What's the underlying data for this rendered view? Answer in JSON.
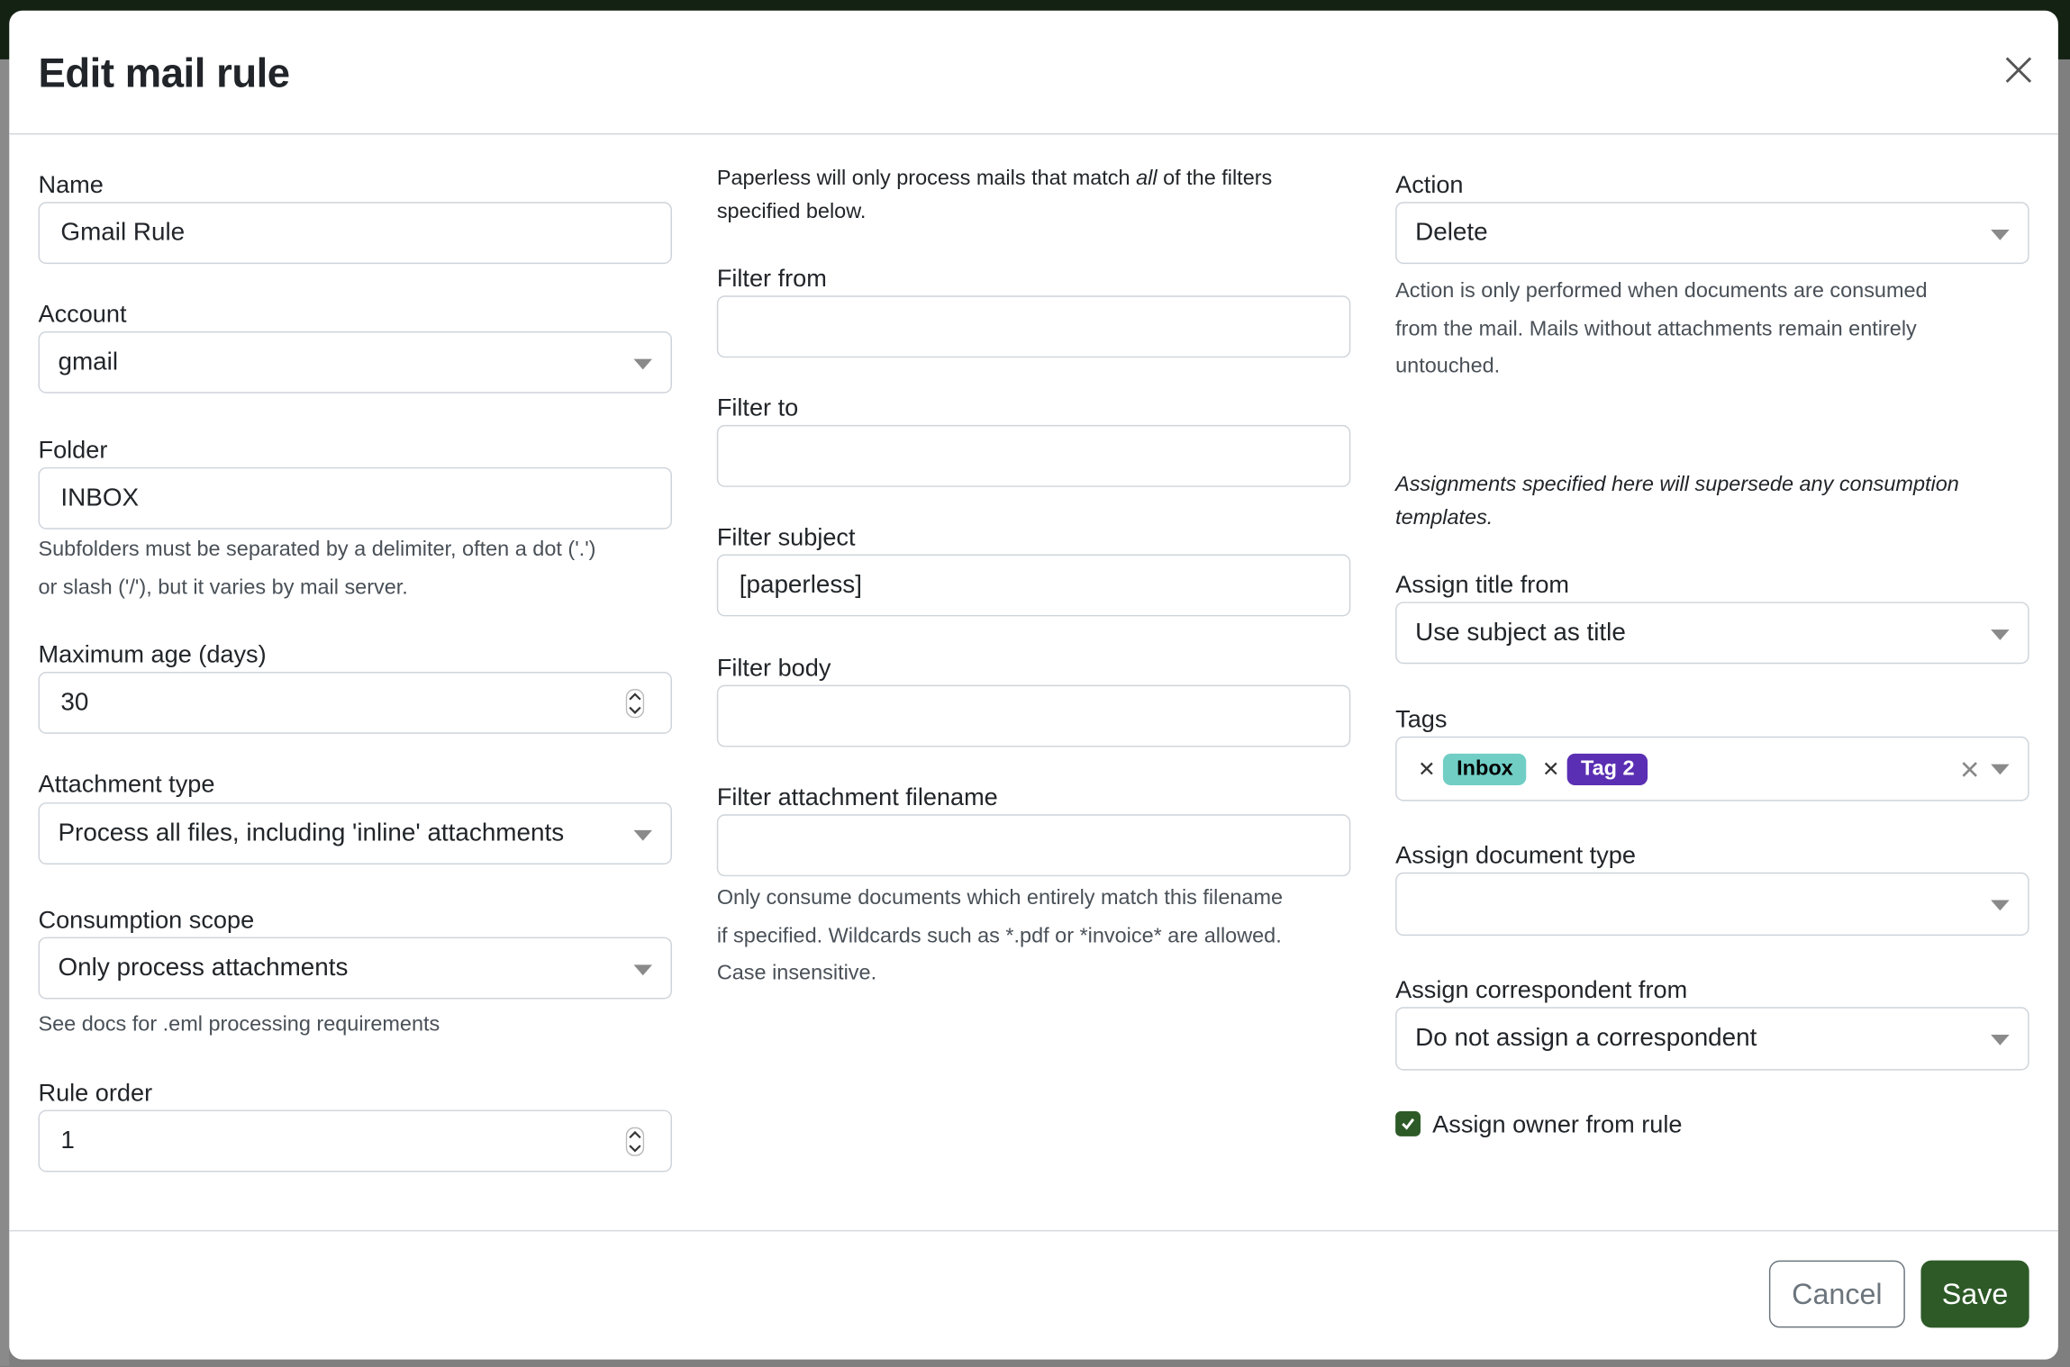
{
  "modal": {
    "title": "Edit mail rule"
  },
  "left": {
    "name": {
      "label": "Name",
      "value": "Gmail Rule"
    },
    "account": {
      "label": "Account",
      "value": "gmail"
    },
    "folder": {
      "label": "Folder",
      "value": "INBOX",
      "help_1": "Subfolders must be separated by a delimiter, often a dot ('.')",
      "help_2": "or slash ('/'), but it varies by mail server."
    },
    "max_age": {
      "label": "Maximum age (days)",
      "value": "30"
    },
    "attachment_type": {
      "label": "Attachment type",
      "value": "Process all files, including 'inline' attachments"
    },
    "consumption_scope": {
      "label": "Consumption scope",
      "value": "Only process attachments",
      "help": "See docs for .eml processing requirements"
    },
    "rule_order": {
      "label": "Rule order",
      "value": "1"
    }
  },
  "middle": {
    "intro_1a": "Paperless will only process mails that match ",
    "intro_1b": "all",
    "intro_1c": " of the filters",
    "intro_2": "specified below.",
    "filter_from": {
      "label": "Filter from",
      "value": ""
    },
    "filter_to": {
      "label": "Filter to",
      "value": ""
    },
    "filter_subject": {
      "label": "Filter subject",
      "value": "[paperless]"
    },
    "filter_body": {
      "label": "Filter body",
      "value": ""
    },
    "filter_attachment": {
      "label": "Filter attachment filename",
      "value": "",
      "help_1": "Only consume documents which entirely match this filename",
      "help_2": "if specified. Wildcards such as *.pdf or *invoice* are allowed.",
      "help_3": "Case insensitive."
    }
  },
  "right": {
    "action": {
      "label": "Action",
      "value": "Delete",
      "help_1": "Action is only performed when documents are consumed",
      "help_2": "from the mail. Mails without attachments remain entirely",
      "help_3": "untouched."
    },
    "assign_note_1": "Assignments specified here will supersede any consumption",
    "assign_note_2": "templates.",
    "assign_title": {
      "label": "Assign title from",
      "value": "Use subject as title"
    },
    "tags": {
      "label": "Tags",
      "items": [
        {
          "name": "Inbox",
          "bg": "#70cec5",
          "fg": "#000000"
        },
        {
          "name": "Tag 2",
          "bg": "#5a2fb3",
          "fg": "#ffffff"
        }
      ]
    },
    "doc_type": {
      "label": "Assign document type",
      "value": ""
    },
    "correspondent": {
      "label": "Assign correspondent from",
      "value": "Do not assign a correspondent"
    },
    "owner": {
      "label": "Assign owner from rule",
      "checked": true
    }
  },
  "footer": {
    "cancel": "Cancel",
    "save": "Save"
  },
  "colors": {
    "primary": "#2d5a27",
    "topbar": "#142214",
    "backdrop": "#7f7f7f"
  }
}
